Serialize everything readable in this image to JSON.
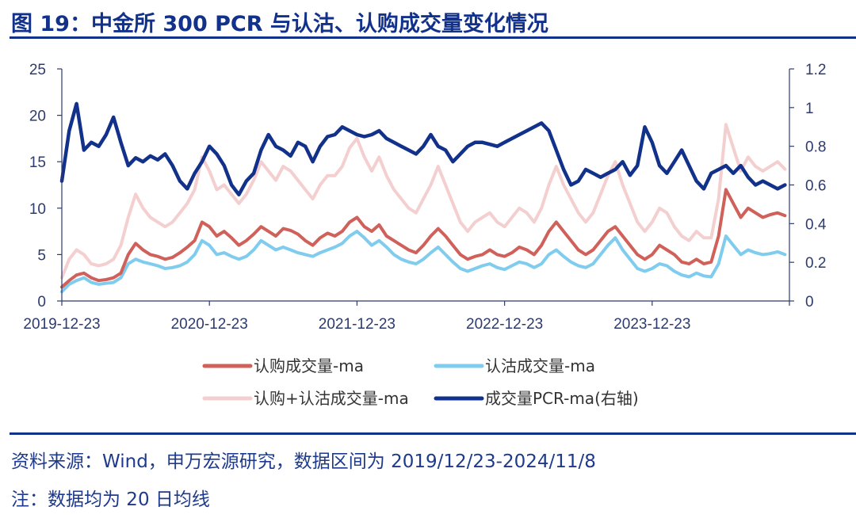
{
  "header": {
    "title": "图 19：中金所 300 PCR 与认沽、认购成交量变化情况"
  },
  "footer": {
    "source": "资料来源：Wind，申万宏源研究，数据区间为 2019/12/23-2024/11/8",
    "note": "注：数据均为 20 日均线"
  },
  "chart_data": {
    "type": "line",
    "title": "中金所 300 PCR 与认沽、认购成交量变化情况",
    "x_ticks": [
      "2019-12-23",
      "2020-12-23",
      "2021-12-23",
      "2022-12-23",
      "2023-12-23"
    ],
    "x_range": [
      "2019-12-23",
      "2024-11-08"
    ],
    "y_left": {
      "ticks": [
        0,
        5,
        10,
        15,
        20,
        25
      ],
      "range": [
        0,
        25
      ]
    },
    "y_right": {
      "ticks": [
        "0",
        "0.2",
        "0.4",
        "0.6",
        "0.8",
        "1",
        "1.2"
      ],
      "range": [
        0,
        1.2
      ]
    },
    "legend_position": "bottom",
    "x": [
      0.0,
      0.05,
      0.1,
      0.15,
      0.2,
      0.25,
      0.3,
      0.35,
      0.4,
      0.45,
      0.5,
      0.55,
      0.6,
      0.65,
      0.7,
      0.75,
      0.8,
      0.85,
      0.9,
      0.95,
      1.0,
      1.05,
      1.1,
      1.15,
      1.2,
      1.25,
      1.3,
      1.35,
      1.4,
      1.45,
      1.5,
      1.55,
      1.6,
      1.65,
      1.7,
      1.75,
      1.8,
      1.85,
      1.9,
      1.95,
      2.0,
      2.05,
      2.1,
      2.15,
      2.2,
      2.25,
      2.3,
      2.35,
      2.4,
      2.45,
      2.5,
      2.55,
      2.6,
      2.65,
      2.7,
      2.75,
      2.8,
      2.85,
      2.9,
      2.95,
      3.0,
      3.05,
      3.1,
      3.15,
      3.2,
      3.25,
      3.3,
      3.35,
      3.4,
      3.45,
      3.5,
      3.55,
      3.6,
      3.65,
      3.7,
      3.75,
      3.8,
      3.85,
      3.9,
      3.95,
      4.0,
      4.05,
      4.1,
      4.15,
      4.2,
      4.25,
      4.3,
      4.35,
      4.4,
      4.45,
      4.5,
      4.55,
      4.6,
      4.65,
      4.7,
      4.75,
      4.8,
      4.85,
      4.9
    ],
    "series": [
      {
        "name": "认购成交量-ma",
        "axis": "left",
        "color": "#d0605a",
        "values": [
          1.5,
          2.2,
          2.8,
          3.0,
          2.5,
          2.2,
          2.3,
          2.5,
          3.0,
          5.0,
          6.2,
          5.5,
          5.0,
          4.8,
          4.5,
          4.7,
          5.2,
          5.8,
          6.5,
          8.5,
          8.0,
          7.0,
          7.5,
          6.8,
          6.0,
          6.5,
          7.2,
          8.0,
          7.5,
          7.0,
          7.8,
          7.6,
          7.2,
          6.5,
          6.0,
          6.8,
          7.3,
          7.0,
          7.5,
          8.5,
          9.0,
          8.0,
          7.5,
          8.2,
          7.0,
          6.5,
          6.0,
          5.5,
          5.2,
          6.0,
          7.0,
          7.8,
          7.0,
          6.0,
          5.0,
          4.5,
          4.8,
          5.0,
          5.5,
          5.0,
          4.8,
          5.2,
          5.8,
          5.5,
          5.0,
          6.0,
          7.5,
          8.5,
          7.5,
          6.5,
          5.5,
          5.0,
          5.5,
          6.5,
          7.5,
          8.0,
          7.0,
          6.0,
          5.0,
          4.5,
          5.0,
          6.0,
          5.5,
          5.0,
          4.2,
          4.0,
          4.5,
          4.0,
          4.2,
          7.0,
          12.0,
          10.5,
          9.0,
          10.0,
          9.5,
          9.0,
          9.3,
          9.5,
          9.2
        ]
      },
      {
        "name": "认沽成交量-ma",
        "axis": "left",
        "color": "#7fccee",
        "values": [
          1.0,
          1.8,
          2.2,
          2.5,
          2.0,
          1.8,
          1.9,
          2.0,
          2.5,
          4.0,
          4.5,
          4.2,
          4.0,
          3.8,
          3.5,
          3.6,
          3.8,
          4.2,
          5.0,
          6.5,
          6.0,
          5.0,
          5.2,
          4.8,
          4.5,
          4.8,
          5.5,
          6.5,
          6.0,
          5.5,
          5.8,
          5.5,
          5.2,
          5.0,
          4.8,
          5.2,
          5.5,
          5.8,
          6.2,
          7.0,
          7.5,
          6.8,
          6.0,
          6.5,
          5.8,
          5.0,
          4.5,
          4.2,
          4.0,
          4.5,
          5.2,
          5.8,
          5.0,
          4.2,
          3.5,
          3.2,
          3.5,
          3.8,
          4.0,
          3.6,
          3.4,
          3.8,
          4.2,
          4.0,
          3.6,
          4.0,
          5.0,
          5.5,
          4.8,
          4.2,
          3.8,
          3.6,
          4.0,
          5.0,
          6.0,
          6.8,
          5.5,
          4.5,
          3.5,
          3.2,
          3.5,
          4.0,
          3.8,
          3.2,
          2.8,
          2.6,
          3.0,
          2.7,
          2.6,
          4.0,
          7.0,
          6.0,
          5.0,
          5.5,
          5.2,
          5.0,
          5.1,
          5.3,
          5.0
        ]
      },
      {
        "name": "认购+认沽成交量-ma",
        "axis": "left",
        "color": "#f4cfcf",
        "values": [
          2.5,
          4.5,
          5.5,
          5.0,
          4.0,
          3.8,
          4.0,
          4.5,
          6.0,
          9.0,
          11.5,
          10.0,
          9.0,
          8.5,
          8.0,
          8.5,
          9.5,
          10.5,
          12.0,
          15.5,
          14.0,
          12.0,
          12.5,
          11.5,
          10.5,
          11.5,
          13.0,
          15.0,
          14.0,
          13.0,
          14.5,
          14.0,
          13.0,
          12.0,
          11.0,
          12.5,
          13.5,
          13.5,
          14.5,
          16.5,
          17.5,
          15.5,
          14.0,
          15.5,
          13.5,
          12.0,
          11.0,
          10.0,
          9.5,
          11.0,
          12.5,
          14.5,
          12.5,
          10.5,
          8.5,
          7.5,
          8.5,
          9.0,
          9.5,
          8.5,
          8.0,
          9.0,
          10.0,
          9.5,
          8.5,
          10.0,
          12.5,
          14.5,
          12.5,
          11.0,
          9.5,
          8.5,
          9.5,
          11.5,
          13.5,
          15.0,
          12.5,
          10.5,
          8.5,
          7.5,
          8.5,
          10.0,
          9.5,
          8.0,
          7.0,
          6.5,
          7.5,
          6.8,
          6.8,
          11.0,
          19.0,
          16.5,
          14.0,
          15.5,
          14.5,
          14.0,
          14.5,
          15.0,
          14.2
        ]
      },
      {
        "name": "成交量PCR-ma(右轴)",
        "axis": "right",
        "color": "#12318a",
        "values": [
          0.62,
          0.88,
          1.02,
          0.78,
          0.82,
          0.8,
          0.86,
          0.95,
          0.82,
          0.7,
          0.74,
          0.72,
          0.75,
          0.73,
          0.76,
          0.7,
          0.62,
          0.58,
          0.66,
          0.72,
          0.8,
          0.76,
          0.7,
          0.6,
          0.55,
          0.62,
          0.66,
          0.78,
          0.86,
          0.8,
          0.78,
          0.75,
          0.82,
          0.8,
          0.72,
          0.8,
          0.85,
          0.86,
          0.9,
          0.88,
          0.86,
          0.85,
          0.86,
          0.88,
          0.84,
          0.82,
          0.8,
          0.78,
          0.76,
          0.8,
          0.86,
          0.8,
          0.78,
          0.72,
          0.76,
          0.8,
          0.82,
          0.82,
          0.81,
          0.8,
          0.82,
          0.84,
          0.86,
          0.88,
          0.9,
          0.92,
          0.88,
          0.78,
          0.68,
          0.6,
          0.62,
          0.68,
          0.66,
          0.64,
          0.66,
          0.68,
          0.72,
          0.65,
          0.7,
          0.9,
          0.82,
          0.7,
          0.66,
          0.72,
          0.78,
          0.7,
          0.62,
          0.58,
          0.66,
          0.68,
          0.7,
          0.66,
          0.7,
          0.64,
          0.6,
          0.62,
          0.6,
          0.58,
          0.6
        ]
      }
    ]
  }
}
